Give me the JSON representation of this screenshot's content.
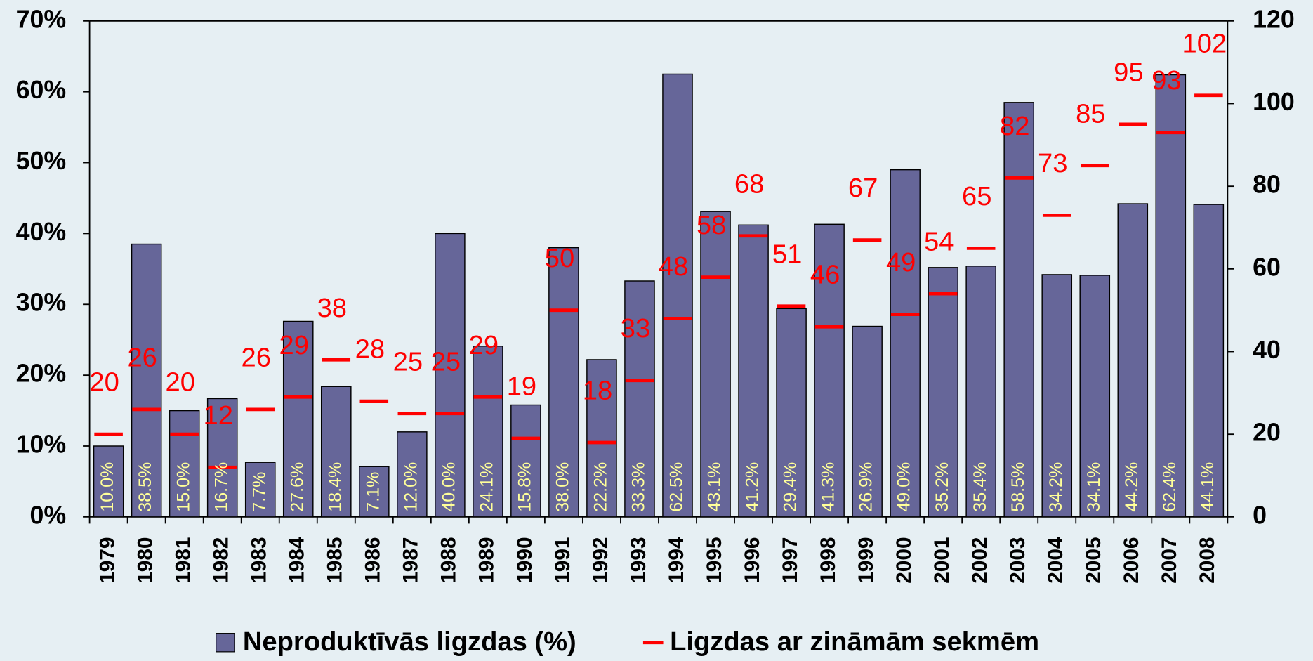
{
  "chart_data": {
    "type": "bar",
    "categories": [
      "1979",
      "1980",
      "1981",
      "1982",
      "1983",
      "1984",
      "1985",
      "1986",
      "1987",
      "1988",
      "1989",
      "1990",
      "1991",
      "1992",
      "1993",
      "1994",
      "1995",
      "1996",
      "1997",
      "1998",
      "1999",
      "2000",
      "2001",
      "2002",
      "2003",
      "2004",
      "2005",
      "2006",
      "2007",
      "2008"
    ],
    "series": [
      {
        "name": "Neproduktīvās ligzdas (%)",
        "color": "#666699",
        "values": [
          10.0,
          38.5,
          15.0,
          16.7,
          7.7,
          27.6,
          18.4,
          7.1,
          12.0,
          40.0,
          24.1,
          15.8,
          38.0,
          22.2,
          33.3,
          62.5,
          43.1,
          41.2,
          29.4,
          41.3,
          26.9,
          49.0,
          35.2,
          35.4,
          58.5,
          34.2,
          34.1,
          44.2,
          62.4,
          44.1
        ],
        "value_labels": [
          "10.0%",
          "38.5%",
          "15.0%",
          "16.7%",
          "7.7%",
          "27.6%",
          "18.4%",
          "7.1%",
          "12.0%",
          "40.0%",
          "24.1%",
          "15.8%",
          "38.0%",
          "22.2%",
          "33.3%",
          "62.5%",
          "43.1%",
          "41.2%",
          "29.4%",
          "41.3%",
          "26.9%",
          "49.0%",
          "35.2%",
          "35.4%",
          "58.5%",
          "34.2%",
          "34.1%",
          "44.2%",
          "62.4%",
          "44.1%"
        ]
      },
      {
        "name": "Ligzdas ar zināmām sekmēm",
        "color": "#ff0000",
        "axis": "y2",
        "values": [
          20,
          26,
          20,
          12,
          26,
          29,
          38,
          28,
          25,
          25,
          29,
          19,
          50,
          18,
          33,
          48,
          58,
          68,
          51,
          46,
          67,
          49,
          54,
          65,
          82,
          73,
          85,
          95,
          93,
          102
        ]
      }
    ],
    "ylim": [
      0,
      70
    ],
    "yticks": [
      {
        "value": 0,
        "label": "0%"
      },
      {
        "value": 10,
        "label": "10%"
      },
      {
        "value": 20,
        "label": "20%"
      },
      {
        "value": 30,
        "label": "30%"
      },
      {
        "value": 40,
        "label": "40%"
      },
      {
        "value": 50,
        "label": "50%"
      },
      {
        "value": 60,
        "label": "60%"
      },
      {
        "value": 70,
        "label": "70%"
      }
    ],
    "y2lim": [
      0,
      120
    ],
    "y2ticks": [
      0,
      20,
      40,
      60,
      80,
      100,
      120
    ],
    "legend": "bottom"
  }
}
